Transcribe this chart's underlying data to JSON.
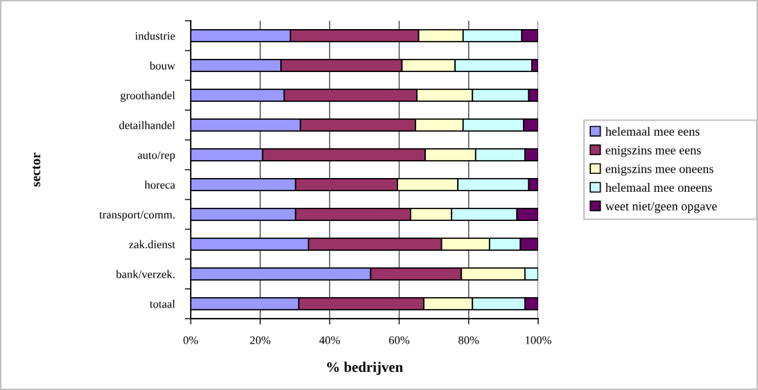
{
  "chart_data": {
    "type": "bar",
    "orientation": "horizontal",
    "stacked": true,
    "xlabel": "% bedrijven",
    "ylabel": "sector",
    "categories": [
      "industrie",
      "bouw",
      "groothandel",
      "detailhandel",
      "auto/rep",
      "horeca",
      "transport/comm.",
      "zak.dienst",
      "bank/verzek.",
      "totaal"
    ],
    "series": [
      {
        "name": "helemaal mee eens",
        "color": "#9999ff",
        "values": [
          28.7,
          26.0,
          26.9,
          31.6,
          20.7,
          30.2,
          30.2,
          33.9,
          51.8,
          31.1
        ]
      },
      {
        "name": "enigszins mee eens",
        "color": "#993366",
        "values": [
          36.9,
          34.8,
          38.2,
          33.1,
          46.8,
          29.3,
          33.1,
          38.3,
          26.1,
          36.0
        ]
      },
      {
        "name": "enigszins mee oneens",
        "color": "#ffffcc",
        "values": [
          12.8,
          15.3,
          16.0,
          13.7,
          14.5,
          17.4,
          11.8,
          13.8,
          18.3,
          14.0
        ]
      },
      {
        "name": "helemaal mee oneens",
        "color": "#ccffff",
        "values": [
          16.9,
          22.1,
          16.2,
          17.4,
          14.2,
          20.4,
          18.8,
          8.9,
          3.8,
          15.1
        ]
      },
      {
        "name": "weet niet/geen opgave",
        "color": "#660066",
        "values": [
          4.7,
          1.8,
          2.7,
          4.2,
          3.8,
          2.7,
          6.1,
          5.1,
          null,
          3.8
        ]
      }
    ],
    "xlim": [
      0,
      100
    ],
    "xticks": [
      {
        "value": 0,
        "label": "0%"
      },
      {
        "value": 20,
        "label": "20%"
      },
      {
        "value": 40,
        "label": "40%"
      },
      {
        "value": 60,
        "label": "60%"
      },
      {
        "value": 80,
        "label": "80%"
      },
      {
        "value": 100,
        "label": "100%"
      }
    ],
    "grid": "x",
    "legend": "right"
  }
}
